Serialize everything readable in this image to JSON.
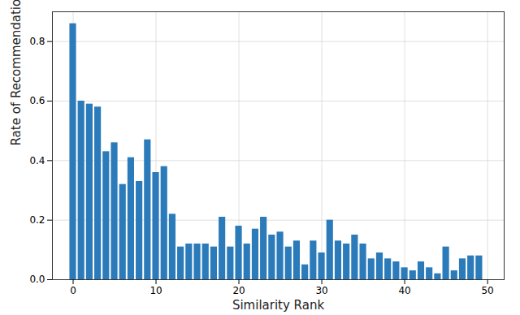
{
  "chart_data": {
    "type": "bar",
    "x_label": "Similarity Rank",
    "y_label": "Rate of Recommendation",
    "x": [
      0,
      1,
      2,
      3,
      4,
      5,
      6,
      7,
      8,
      9,
      10,
      11,
      12,
      13,
      14,
      15,
      16,
      17,
      18,
      19,
      20,
      21,
      22,
      23,
      24,
      25,
      26,
      27,
      28,
      29,
      30,
      31,
      32,
      33,
      34,
      35,
      36,
      37,
      38,
      39,
      40,
      41,
      42,
      43,
      44,
      45,
      46,
      47,
      48,
      49
    ],
    "values": [
      0.86,
      0.6,
      0.59,
      0.58,
      0.43,
      0.46,
      0.32,
      0.41,
      0.33,
      0.47,
      0.36,
      0.38,
      0.22,
      0.11,
      0.12,
      0.12,
      0.12,
      0.11,
      0.21,
      0.11,
      0.18,
      0.12,
      0.17,
      0.21,
      0.15,
      0.16,
      0.11,
      0.13,
      0.05,
      0.13,
      0.09,
      0.2,
      0.13,
      0.12,
      0.15,
      0.12,
      0.07,
      0.09,
      0.07,
      0.06,
      0.04,
      0.03,
      0.06,
      0.04,
      0.02,
      0.11,
      0.03,
      0.07,
      0.08,
      0.08
    ],
    "color": "#2b7bba",
    "xlim": [
      -2.5,
      52
    ],
    "xticks": [
      0,
      10,
      20,
      30,
      40,
      50
    ],
    "ylim": [
      0,
      0.9
    ],
    "yticks": [
      {
        "value": 0,
        "label": "0.0"
      },
      0.2,
      0.4,
      0.6,
      0.8
    ],
    "grid": true
  }
}
